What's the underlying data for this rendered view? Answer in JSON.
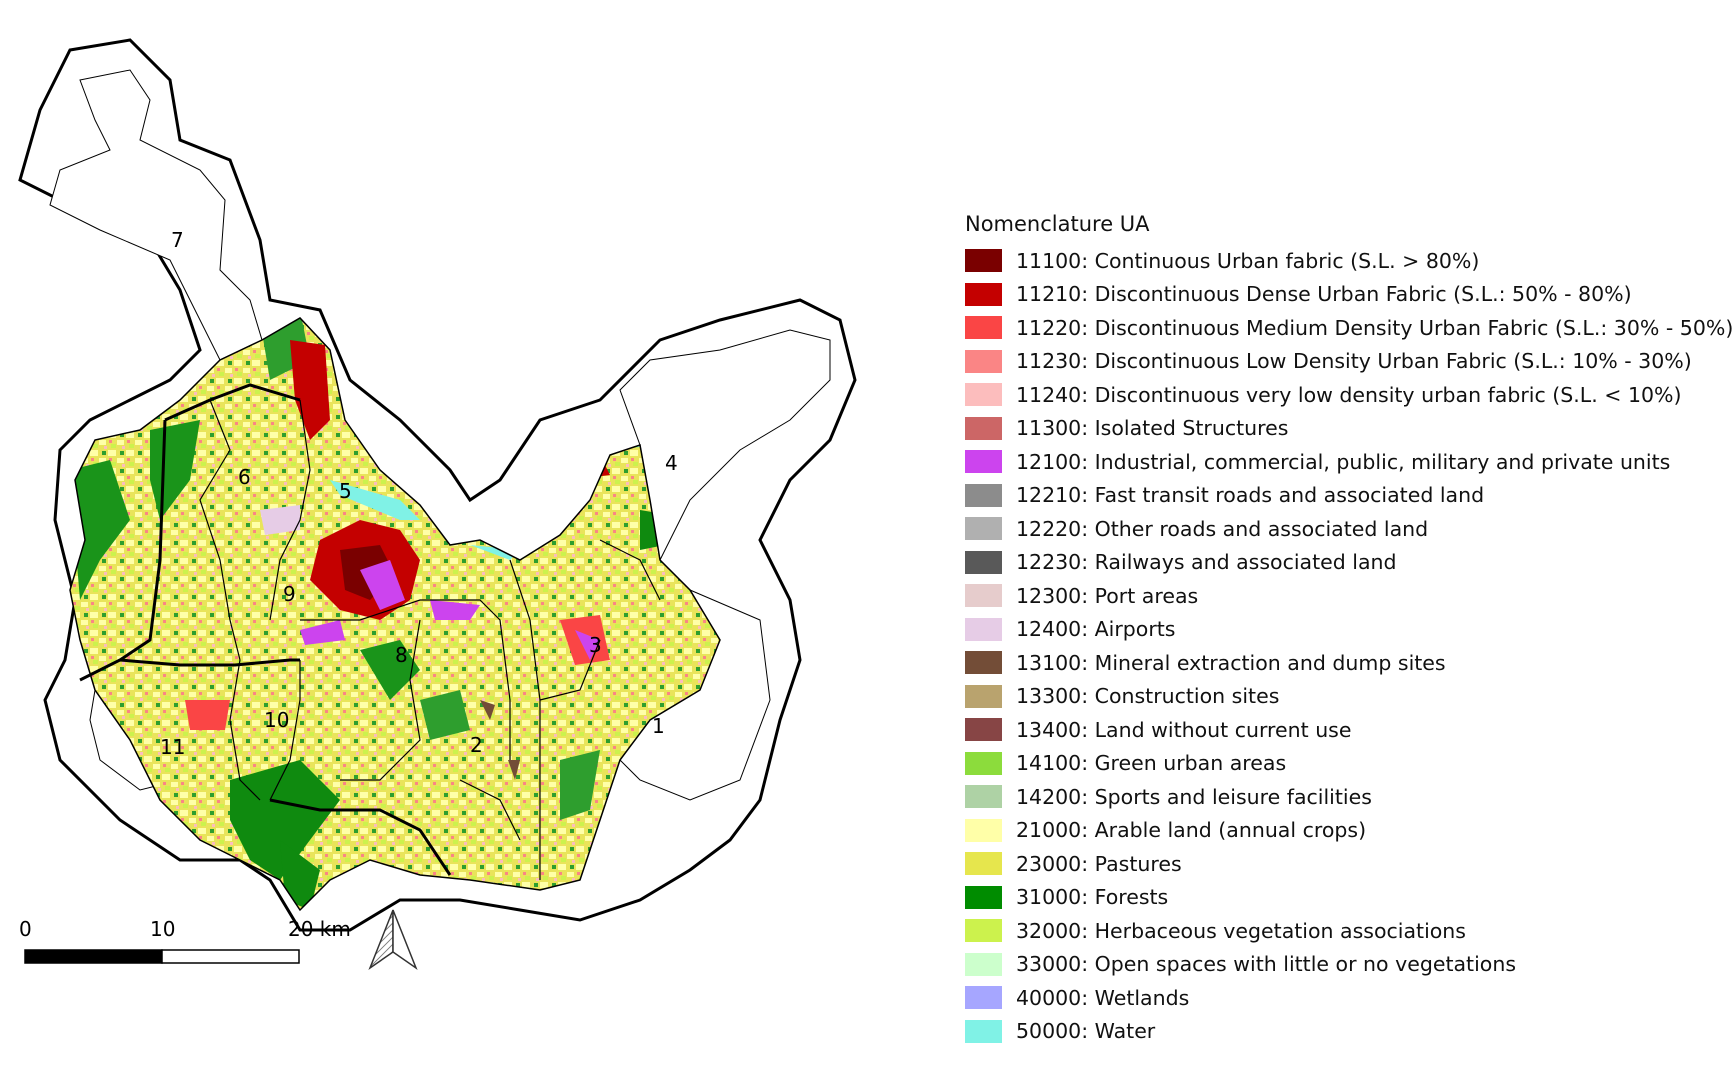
{
  "legend": {
    "title": "Nomenclature UA",
    "items": [
      {
        "label": "11100: Continuous Urban fabric (S.L. > 80%)",
        "color": "#7a0000"
      },
      {
        "label": "11210: Discontinuous Dense Urban Fabric (S.L.: 50% - 80%)",
        "color": "#c40000"
      },
      {
        "label": "11220: Discontinuous Medium Density Urban Fabric (S.L.: 30% - 50%)",
        "color": "#fa4545"
      },
      {
        "label": "11230: Discontinuous Low Density Urban Fabric (S.L.: 10% - 30%)",
        "color": "#fa8585"
      },
      {
        "label": "11240: Discontinuous very low density urban fabric (S.L. < 10%)",
        "color": "#fcbdbd"
      },
      {
        "label": "11300: Isolated Structures",
        "color": "#cc6666"
      },
      {
        "label": "12100: Industrial, commercial, public, military and private units",
        "color": "#cc44ee"
      },
      {
        "label": "12210: Fast transit roads and associated land",
        "color": "#8c8c8c"
      },
      {
        "label": "12220: Other roads and associated land",
        "color": "#b0b0b0"
      },
      {
        "label": "12230: Railways and associated land",
        "color": "#595959"
      },
      {
        "label": "12300: Port areas",
        "color": "#e6cccc"
      },
      {
        "label": "12400: Airports",
        "color": "#e6cce6"
      },
      {
        "label": "13100: Mineral extraction and dump sites",
        "color": "#734d37"
      },
      {
        "label": "13300: Construction sites",
        "color": "#b9a36e"
      },
      {
        "label": "13400: Land without current use",
        "color": "#874545"
      },
      {
        "label": "14100: Green urban areas",
        "color": "#8cdc3c"
      },
      {
        "label": "14200: Sports and leisure facilities",
        "color": "#aed2a5"
      },
      {
        "label": "21000: Arable land (annual crops)",
        "color": "#ffffa8"
      },
      {
        "label": "23000: Pastures",
        "color": "#e6e64d"
      },
      {
        "label": "31000: Forests",
        "color": "#008c00"
      },
      {
        "label": "32000: Herbaceous vegetation associations",
        "color": "#ccf24d"
      },
      {
        "label": "33000: Open spaces with little or no vegetations",
        "color": "#ccffcc"
      },
      {
        "label": "40000: Wetlands",
        "color": "#a6a6ff"
      },
      {
        "label": "50000: Water",
        "color": "#80f2e6"
      }
    ]
  },
  "zones": [
    "1",
    "2",
    "3",
    "4",
    "5",
    "6",
    "7",
    "8",
    "9",
    "10",
    "11"
  ],
  "scale_bar": {
    "ticks": [
      "0",
      "10",
      "20 km"
    ]
  },
  "north_arrow": {
    "icon": "north-arrow-icon"
  }
}
